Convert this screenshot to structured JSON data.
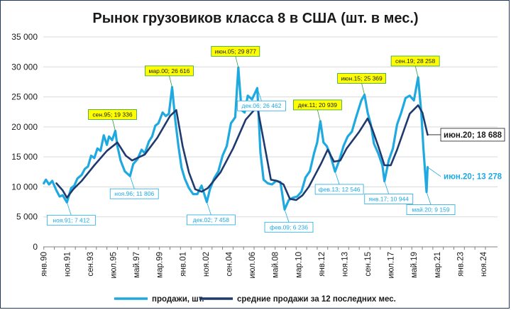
{
  "chart_data": {
    "type": "line",
    "title": "Рынок грузовиков класса 8 в США (шт. в мес.)",
    "ylim": [
      0,
      35000
    ],
    "yticks": [
      "0",
      "5 000",
      "10 000",
      "15 000",
      "20 000",
      "25 000",
      "30 000",
      "35 000"
    ],
    "xlim": [
      "янв.90",
      "дек.25"
    ],
    "xticks": [
      "янв.90",
      "ноя.90",
      "сен.91",
      "июл.92",
      "май.93",
      "мар.94",
      "янв.95",
      "ноя.95",
      "сен.96",
      "июл.97",
      "май.98",
      "мар.99",
      "янв.00",
      "ноя.00",
      "сен.01",
      "июл.02",
      "май.03",
      "мар.04",
      "янв.05",
      "ноя.05",
      "сен.06",
      "июл.07",
      "май.08",
      "мар.09",
      "янв.10",
      "ноя.10",
      "сен.11",
      "июл.12",
      "май.13",
      "мар.14",
      "янв.15",
      "ноя.15",
      "сен.16",
      "июл.17",
      "май.18",
      "мар.19",
      "янв.20",
      "ноя.20",
      "сен.21",
      "июл.22",
      "май.23",
      "мар.24",
      "янв.25"
    ],
    "xtick_labels_shown": [
      "янв.90",
      "ноя.91",
      "сен.93",
      "июл.95",
      "май.97",
      "мар.99",
      "янв.01",
      "ноя.02",
      "сен.04",
      "июл.06",
      "май.08",
      "мар.10",
      "янв.12",
      "ноя.13",
      "сен.15",
      "июл.17",
      "май.19",
      "мар.21",
      "янв.23",
      "ноя.24"
    ],
    "xtick_labels_shown_note": "",
    "legend_position": "bottom",
    "grid": "horizontal",
    "series": [
      {
        "name": "продажи, шт.",
        "color": "#1fa9e1",
        "points": [
          [
            "янв.90",
            10600
          ],
          [
            "мар.90",
            11200
          ],
          [
            "июн.90",
            10400
          ],
          [
            "сен.90",
            11000
          ],
          [
            "янв.91",
            9400
          ],
          [
            "апр.91",
            8400
          ],
          [
            "июл.91",
            8600
          ],
          [
            "ноя.91",
            7412
          ],
          [
            "мар.92",
            9800
          ],
          [
            "июн.92",
            10200
          ],
          [
            "сен.92",
            11400
          ],
          [
            "янв.93",
            12000
          ],
          [
            "апр.93",
            13000
          ],
          [
            "июл.93",
            13400
          ],
          [
            "окт.93",
            15200
          ],
          [
            "янв.94",
            14800
          ],
          [
            "апр.94",
            16400
          ],
          [
            "июл.94",
            16000
          ],
          [
            "окт.94",
            18600
          ],
          [
            "янв.95",
            17000
          ],
          [
            "мар.95",
            18400
          ],
          [
            "июн.95",
            17800
          ],
          [
            "сен.95",
            19336
          ],
          [
            "ноя.95",
            16800
          ],
          [
            "фев.96",
            14400
          ],
          [
            "июн.96",
            12600
          ],
          [
            "ноя.96",
            11806
          ],
          [
            "фев.97",
            13800
          ],
          [
            "июн.97",
            14600
          ],
          [
            "окт.97",
            16200
          ],
          [
            "янв.98",
            15600
          ],
          [
            "май.98",
            17600
          ],
          [
            "авг.98",
            18400
          ],
          [
            "ноя.98",
            20200
          ],
          [
            "фев.99",
            20600
          ],
          [
            "июн.99",
            22400
          ],
          [
            "сен.99",
            21800
          ],
          [
            "дек.99",
            22200
          ],
          [
            "мар.00",
            26616
          ],
          [
            "июн.00",
            21200
          ],
          [
            "сен.00",
            16800
          ],
          [
            "дек.00",
            13200
          ],
          [
            "мар.01",
            11400
          ],
          [
            "июл.01",
            9800
          ],
          [
            "ноя.01",
            8800
          ],
          [
            "мар.02",
            8800
          ],
          [
            "июл.02",
            10200
          ],
          [
            "дек.02",
            7458
          ],
          [
            "мар.03",
            9600
          ],
          [
            "июл.03",
            11400
          ],
          [
            "ноя.03",
            12600
          ],
          [
            "мар.04",
            15200
          ],
          [
            "июл.04",
            16800
          ],
          [
            "ноя.04",
            20600
          ],
          [
            "мар.05",
            21600
          ],
          [
            "июн.05",
            29877
          ],
          [
            "сен.05",
            22800
          ],
          [
            "дек.05",
            22400
          ],
          [
            "мар.06",
            25200
          ],
          [
            "июл.06",
            24600
          ],
          [
            "дек.06",
            26462
          ],
          [
            "мар.07",
            15800
          ],
          [
            "июн.07",
            11200
          ],
          [
            "окт.07",
            10600
          ],
          [
            "фев.08",
            10400
          ],
          [
            "июн.08",
            11000
          ],
          [
            "окт.08",
            10800
          ],
          [
            "фев.09",
            6236
          ],
          [
            "июн.09",
            7800
          ],
          [
            "окт.09",
            8200
          ],
          [
            "фев.10",
            8400
          ],
          [
            "июн.10",
            9200
          ],
          [
            "окт.10",
            11600
          ],
          [
            "фев.11",
            12600
          ],
          [
            "июн.11",
            15600
          ],
          [
            "сен.11",
            17400
          ],
          [
            "дек.11",
            20939
          ],
          [
            "мар.12",
            17400
          ],
          [
            "июн.12",
            16800
          ],
          [
            "сен.12",
            15600
          ],
          [
            "фев.13",
            12546
          ],
          [
            "июн.13",
            14400
          ],
          [
            "окт.13",
            16800
          ],
          [
            "фев.14",
            18400
          ],
          [
            "июн.14",
            19200
          ],
          [
            "окт.14",
            21600
          ],
          [
            "мар.15",
            24400
          ],
          [
            "июн.15",
            25369
          ],
          [
            "сен.15",
            22400
          ],
          [
            "дек.15",
            20400
          ],
          [
            "мар.16",
            17200
          ],
          [
            "июл.16",
            15600
          ],
          [
            "ноя.16",
            13600
          ],
          [
            "янв.17",
            10944
          ],
          [
            "май.17",
            14400
          ],
          [
            "сен.17",
            16400
          ],
          [
            "янв.18",
            20400
          ],
          [
            "май.18",
            22400
          ],
          [
            "сен.18",
            24800
          ],
          [
            "янв.19",
            25200
          ],
          [
            "май.19",
            24400
          ],
          [
            "сен.19",
            28258
          ],
          [
            "дек.19",
            22400
          ],
          [
            "фев.20",
            16400
          ],
          [
            "май.20",
            9159
          ],
          [
            "июн.20",
            13278
          ]
        ]
      },
      {
        "name": "средние продажи за 12 последних мес.",
        "color": "#1f3a6f",
        "points": [
          [
            "янв.91",
            10600
          ],
          [
            "июл.91",
            9400
          ],
          [
            "ноя.91",
            8200
          ],
          [
            "май.92",
            9600
          ],
          [
            "янв.93",
            11000
          ],
          [
            "янв.94",
            13600
          ],
          [
            "янв.95",
            16000
          ],
          [
            "ноя.95",
            17400
          ],
          [
            "июл.96",
            15200
          ],
          [
            "янв.97",
            14400
          ],
          [
            "янв.98",
            15400
          ],
          [
            "янв.99",
            18200
          ],
          [
            "янв.00",
            21800
          ],
          [
            "июл.00",
            22800
          ],
          [
            "янв.01",
            16800
          ],
          [
            "июл.01",
            12400
          ],
          [
            "янв.02",
            9600
          ],
          [
            "июл.02",
            9200
          ],
          [
            "янв.03",
            9800
          ],
          [
            "янв.04",
            12400
          ],
          [
            "янв.05",
            16400
          ],
          [
            "янв.06",
            21200
          ],
          [
            "дек.06",
            23400
          ],
          [
            "июл.07",
            16800
          ],
          [
            "янв.08",
            11200
          ],
          [
            "июл.08",
            11000
          ],
          [
            "янв.09",
            10400
          ],
          [
            "июл.09",
            8000
          ],
          [
            "янв.10",
            7800
          ],
          [
            "июл.10",
            8600
          ],
          [
            "янв.11",
            10000
          ],
          [
            "янв.12",
            14000
          ],
          [
            "июл.12",
            16200
          ],
          [
            "янв.13",
            14200
          ],
          [
            "июл.13",
            14400
          ],
          [
            "янв.14",
            16400
          ],
          [
            "янв.15",
            19200
          ],
          [
            "сен.15",
            21400
          ],
          [
            "янв.16",
            19800
          ],
          [
            "июл.16",
            16800
          ],
          [
            "янв.17",
            13600
          ],
          [
            "июл.17",
            13600
          ],
          [
            "янв.18",
            16200
          ],
          [
            "июл.18",
            19200
          ],
          [
            "янв.19",
            22200
          ],
          [
            "сен.19",
            23600
          ],
          [
            "янв.20",
            22400
          ],
          [
            "июн.20",
            18688
          ]
        ]
      }
    ],
    "annotations": [
      {
        "label": "ноя.91; 7 412",
        "highlight": false
      },
      {
        "label": "сен.95; 19 336",
        "highlight": true
      },
      {
        "label": "ноя.96; 11 806",
        "highlight": false
      },
      {
        "label": "мар.00; 26 616",
        "highlight": true
      },
      {
        "label": "дек.02; 7 458",
        "highlight": false
      },
      {
        "label": "июн.05; 29 877",
        "highlight": true
      },
      {
        "label": "дек.06; 26 462",
        "highlight": false
      },
      {
        "label": "фев.09; 6 236",
        "highlight": false
      },
      {
        "label": "дек.11; 20 939",
        "highlight": true
      },
      {
        "label": "фев.13; 12 546",
        "highlight": false
      },
      {
        "label": "июн.15; 25 369",
        "highlight": true
      },
      {
        "label": "янв.17; 10 944",
        "highlight": false
      },
      {
        "label": "сен.19; 28 258",
        "highlight": true
      },
      {
        "label": "май.20; 9 159",
        "highlight": false
      }
    ],
    "end_annotations": [
      {
        "label": "июн.20; 18 688",
        "series": "средние продажи за 12 последних мес.",
        "color": "#1a1a1a"
      },
      {
        "label": "июн.20; 13 278",
        "series": "продажи, шт.",
        "color": "#1fa9e1"
      }
    ]
  },
  "colors": {
    "sales_line": "#1fa9e1",
    "average_line": "#1f3a6f",
    "highlight_fill": "#ffff00",
    "highlight_border": "#2e9e3e",
    "label_border": "#1fa9e1",
    "grid": "#d9d9d9"
  }
}
